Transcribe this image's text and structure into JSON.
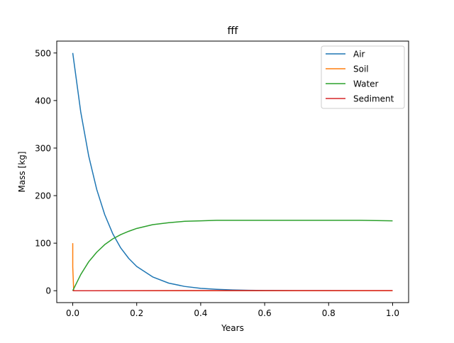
{
  "chart_data": {
    "type": "line",
    "title": "fff",
    "xlabel": "Years",
    "ylabel": "Mass [kg]",
    "xlim": [
      -0.05,
      1.05
    ],
    "ylim": [
      -25,
      525
    ],
    "x_ticks": [
      0.0,
      0.2,
      0.4,
      0.6,
      0.8,
      1.0
    ],
    "x_tick_labels": [
      "0.0",
      "0.2",
      "0.4",
      "0.6",
      "0.8",
      "1.0"
    ],
    "y_ticks": [
      0,
      100,
      200,
      300,
      400,
      500
    ],
    "y_tick_labels": [
      "0",
      "100",
      "200",
      "300",
      "400",
      "500"
    ],
    "grid": false,
    "legend_position": "top-right",
    "series": [
      {
        "name": "Air",
        "color": "#1f77b4",
        "x": [
          0,
          0.025,
          0.05,
          0.075,
          0.1,
          0.125,
          0.15,
          0.175,
          0.2,
          0.25,
          0.3,
          0.35,
          0.4,
          0.45,
          0.5,
          0.55,
          0.6,
          0.7,
          0.8,
          0.9,
          1.0
        ],
        "y": [
          500,
          376,
          283,
          213,
          160,
          120,
          90,
          68,
          51,
          29,
          16,
          9,
          5,
          3,
          1.6,
          0.9,
          0.5,
          0.2,
          0.1,
          0,
          0
        ]
      },
      {
        "name": "Soil",
        "color": "#ff7f0e",
        "x": [
          0,
          0,
          0.003,
          0.2,
          0.4,
          0.6,
          0.8,
          1.0
        ],
        "y": [
          100,
          50,
          0,
          0,
          0,
          0,
          0,
          0
        ]
      },
      {
        "name": "Water",
        "color": "#2ca02c",
        "x": [
          0,
          0.025,
          0.05,
          0.075,
          0.1,
          0.125,
          0.15,
          0.175,
          0.2,
          0.25,
          0.3,
          0.35,
          0.4,
          0.45,
          0.5,
          0.6,
          0.7,
          0.8,
          0.9,
          1.0
        ],
        "y": [
          0,
          34,
          61,
          81,
          97,
          109,
          118,
          125,
          131,
          139,
          143,
          146,
          147,
          148,
          148,
          148,
          148,
          148,
          148,
          147
        ]
      },
      {
        "name": "Sediment",
        "color": "#d62728",
        "x": [
          0,
          0.2,
          0.4,
          0.6,
          0.8,
          1.0
        ],
        "y": [
          0,
          0.2,
          0.3,
          0.3,
          0.3,
          0.3
        ]
      }
    ]
  }
}
